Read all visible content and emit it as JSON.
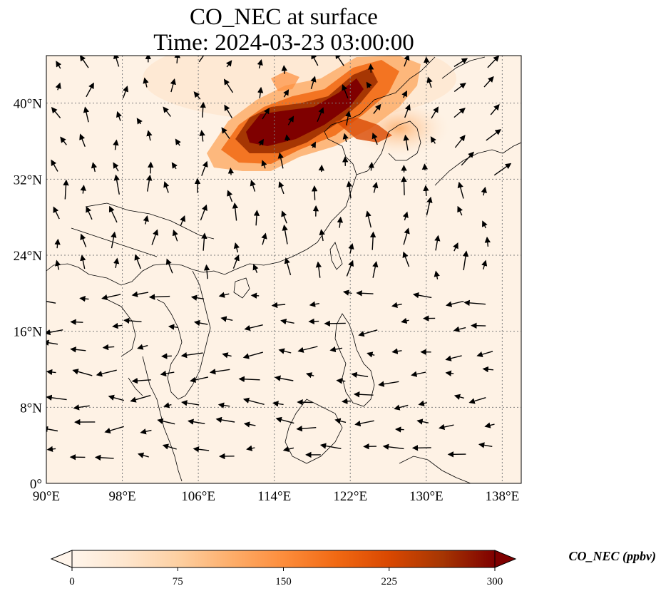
{
  "title": {
    "line1": "CO_NEC at surface",
    "line2": "Time: 2024-03-23 03:00:00"
  },
  "map": {
    "extent": {
      "lon_min": 90,
      "lon_max": 140,
      "lat_min": 0,
      "lat_max": 45
    },
    "lon_ticks": [
      90,
      98,
      106,
      114,
      122,
      130,
      138
    ],
    "lat_ticks": [
      0,
      8,
      16,
      24,
      32,
      40
    ],
    "lon_tick_labels": [
      "90°E",
      "98°E",
      "106°E",
      "114°E",
      "122°E",
      "130°E",
      "138°E"
    ],
    "lat_tick_labels": [
      "0°",
      "8°N",
      "16°N",
      "24°N",
      "32°N",
      "40°N"
    ],
    "gridlines": true,
    "colormap": [
      "#fff5eb",
      "#fee6ce",
      "#fdd0a2",
      "#fdae6b",
      "#fd8d3c",
      "#f16913",
      "#d94801",
      "#a63603",
      "#7f0000"
    ],
    "plume_color_high": "#7f0000",
    "plume_color_mid": "#d94801",
    "plume_color_low": "#fdae6b"
  },
  "colorbar": {
    "label": "CO_NEC (ppbv)",
    "min": 0,
    "max": 300,
    "ticks": [
      0,
      75,
      150,
      225,
      300
    ],
    "tick_labels": [
      "0",
      "75",
      "150",
      "225",
      "300"
    ],
    "extend": "both"
  }
}
